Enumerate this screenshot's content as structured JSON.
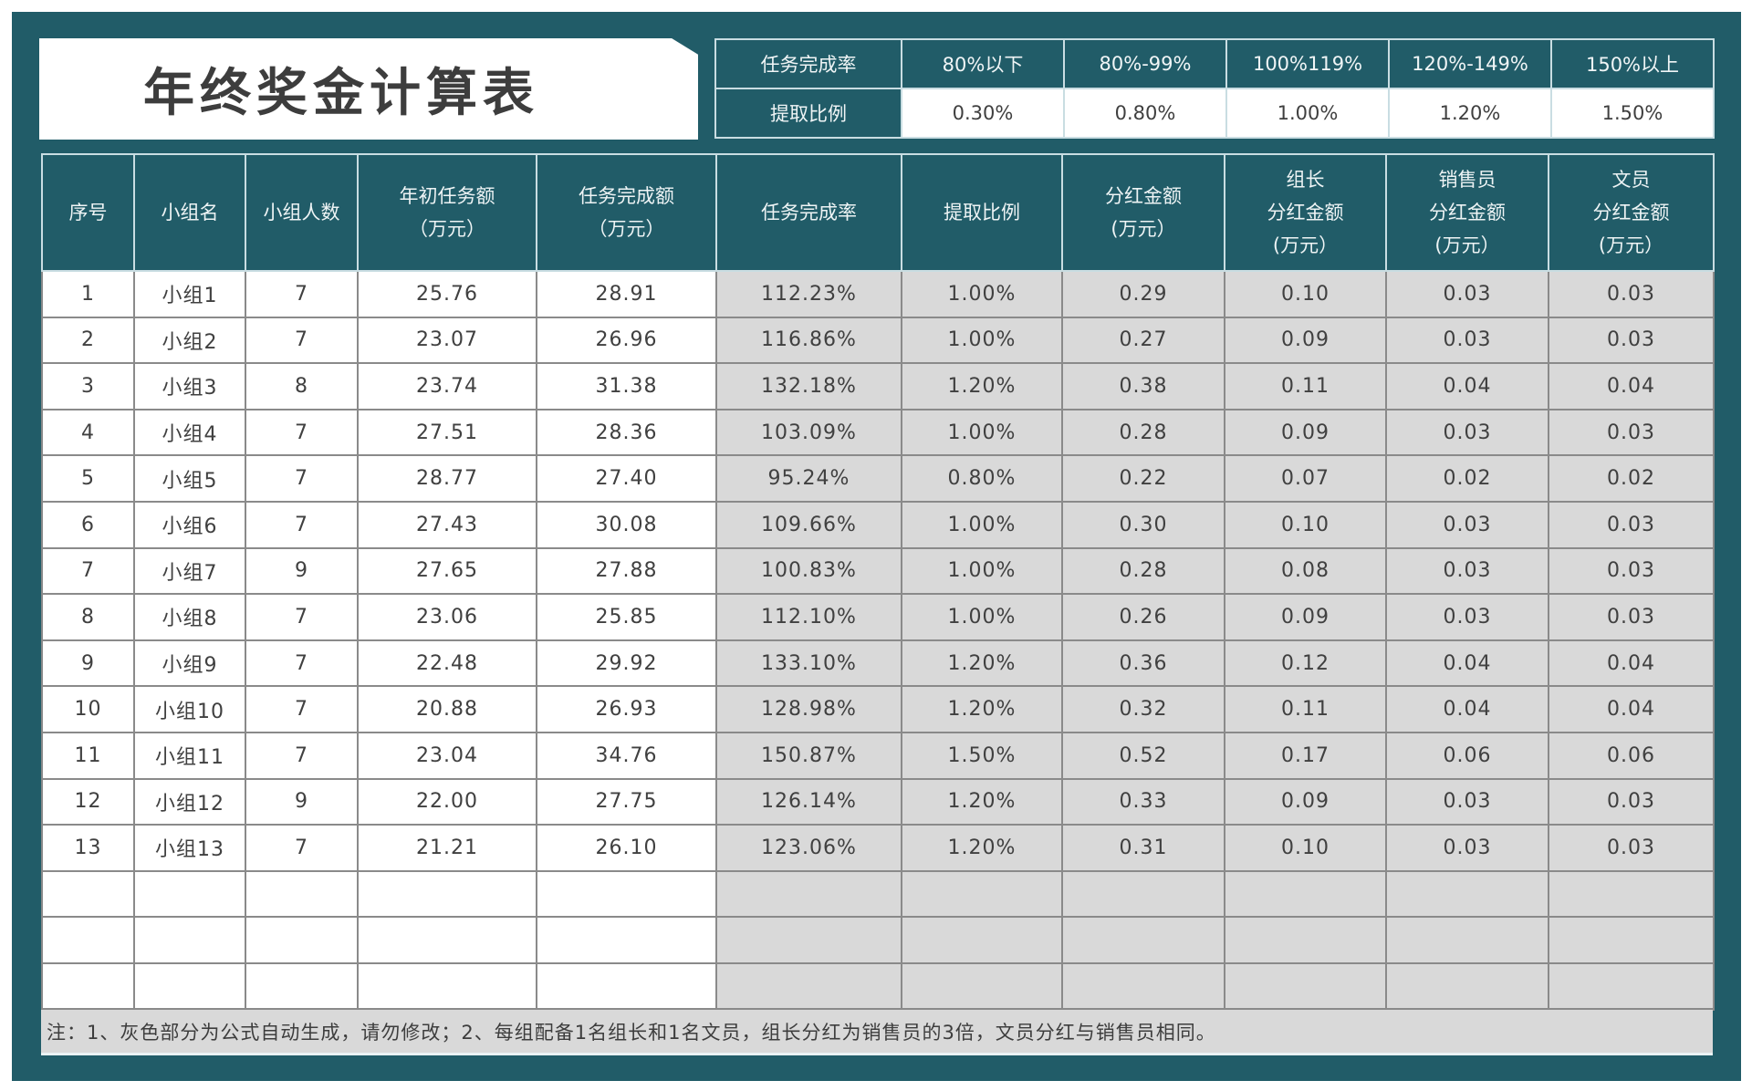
{
  "title": "年终奖金计算表",
  "legend": {
    "row_labels": [
      "任务完成率",
      "提取比例"
    ],
    "tiers": [
      {
        "range": "80%以下",
        "ratio": "0.30%"
      },
      {
        "range": "80%-99%",
        "ratio": "0.80%"
      },
      {
        "range": "100%119%",
        "ratio": "1.00%"
      },
      {
        "range": "120%-149%",
        "ratio": "1.20%"
      },
      {
        "range": "150%以上",
        "ratio": "1.50%"
      }
    ]
  },
  "table": {
    "headers": [
      {
        "lines": [
          "序号"
        ]
      },
      {
        "lines": [
          "小组名"
        ]
      },
      {
        "lines": [
          "小组人数"
        ]
      },
      {
        "lines": [
          "年初任务额",
          "（万元）"
        ]
      },
      {
        "lines": [
          "任务完成额",
          "（万元）"
        ]
      },
      {
        "lines": [
          "任务完成率"
        ]
      },
      {
        "lines": [
          "提取比例"
        ]
      },
      {
        "lines": [
          "分红金额",
          "(万元）"
        ]
      },
      {
        "lines": [
          "组长",
          "分红金额",
          "(万元）"
        ]
      },
      {
        "lines": [
          "销售员",
          "分红金额",
          "(万元）"
        ]
      },
      {
        "lines": [
          "文员",
          "分红金额",
          "(万元）"
        ]
      }
    ],
    "rows": [
      [
        "1",
        "小组1",
        "7",
        "25.76",
        "28.91",
        "112.23%",
        "1.00%",
        "0.29",
        "0.10",
        "0.03",
        "0.03"
      ],
      [
        "2",
        "小组2",
        "7",
        "23.07",
        "26.96",
        "116.86%",
        "1.00%",
        "0.27",
        "0.09",
        "0.03",
        "0.03"
      ],
      [
        "3",
        "小组3",
        "8",
        "23.74",
        "31.38",
        "132.18%",
        "1.20%",
        "0.38",
        "0.11",
        "0.04",
        "0.04"
      ],
      [
        "4",
        "小组4",
        "7",
        "27.51",
        "28.36",
        "103.09%",
        "1.00%",
        "0.28",
        "0.09",
        "0.03",
        "0.03"
      ],
      [
        "5",
        "小组5",
        "7",
        "28.77",
        "27.40",
        "95.24%",
        "0.80%",
        "0.22",
        "0.07",
        "0.02",
        "0.02"
      ],
      [
        "6",
        "小组6",
        "7",
        "27.43",
        "30.08",
        "109.66%",
        "1.00%",
        "0.30",
        "0.10",
        "0.03",
        "0.03"
      ],
      [
        "7",
        "小组7",
        "9",
        "27.65",
        "27.88",
        "100.83%",
        "1.00%",
        "0.28",
        "0.08",
        "0.03",
        "0.03"
      ],
      [
        "8",
        "小组8",
        "7",
        "23.06",
        "25.85",
        "112.10%",
        "1.00%",
        "0.26",
        "0.09",
        "0.03",
        "0.03"
      ],
      [
        "9",
        "小组9",
        "7",
        "22.48",
        "29.92",
        "133.10%",
        "1.20%",
        "0.36",
        "0.12",
        "0.04",
        "0.04"
      ],
      [
        "10",
        "小组10",
        "7",
        "20.88",
        "26.93",
        "128.98%",
        "1.20%",
        "0.32",
        "0.11",
        "0.04",
        "0.04"
      ],
      [
        "11",
        "小组11",
        "7",
        "23.04",
        "34.76",
        "150.87%",
        "1.50%",
        "0.52",
        "0.17",
        "0.06",
        "0.06"
      ],
      [
        "12",
        "小组12",
        "9",
        "22.00",
        "27.75",
        "126.14%",
        "1.20%",
        "0.33",
        "0.09",
        "0.03",
        "0.03"
      ],
      [
        "13",
        "小组13",
        "7",
        "21.21",
        "26.10",
        "123.06%",
        "1.20%",
        "0.31",
        "0.10",
        "0.03",
        "0.03"
      ],
      [
        "",
        "",
        "",
        "",
        "",
        "",
        "",
        "",
        "",
        "",
        ""
      ],
      [
        "",
        "",
        "",
        "",
        "",
        "",
        "",
        "",
        "",
        "",
        ""
      ],
      [
        "",
        "",
        "",
        "",
        "",
        "",
        "",
        "",
        "",
        "",
        ""
      ]
    ]
  },
  "note": "注：1、灰色部分为公式自动生成，请勿修改；2、每组配备1名组长和1名文员，组长分红为销售员的3倍，文员分红与销售员相同。",
  "colors": {
    "teal": "#215c68",
    "formula_gray": "#d9d9d9",
    "text": "#404040"
  }
}
